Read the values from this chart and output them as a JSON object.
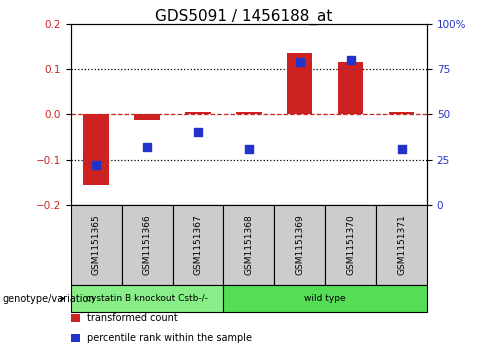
{
  "title": "GDS5091 / 1456188_at",
  "samples": [
    "GSM1151365",
    "GSM1151366",
    "GSM1151367",
    "GSM1151368",
    "GSM1151369",
    "GSM1151370",
    "GSM1151371"
  ],
  "bar_values": [
    -0.155,
    -0.012,
    0.005,
    0.005,
    0.135,
    0.115,
    0.005
  ],
  "dot_percentiles": [
    22,
    32,
    40,
    31,
    79,
    80,
    31
  ],
  "bar_color": "#cc2222",
  "dot_color": "#2233cc",
  "ylim_left": [
    -0.2,
    0.2
  ],
  "ylim_right": [
    0,
    100
  ],
  "yticks_left": [
    -0.2,
    -0.1,
    0.0,
    0.1,
    0.2
  ],
  "yticks_right": [
    0,
    25,
    50,
    75,
    100
  ],
  "ytick_labels_right": [
    "0",
    "25",
    "50",
    "75",
    "100%"
  ],
  "hline_color": "#cc2222",
  "group_sample_counts": [
    3,
    4
  ],
  "genotype_group_labels": [
    "cystatin B knockout Cstb-/-",
    "wild type"
  ],
  "genotype_group_colors": [
    "#88ee88",
    "#55dd55"
  ],
  "legend_items": [
    {
      "label": "transformed count",
      "color": "#cc2222"
    },
    {
      "label": "percentile rank within the sample",
      "color": "#2233cc"
    }
  ],
  "genotype_label": "genotype/variation",
  "bar_width": 0.5,
  "background_color": "#ffffff",
  "tick_label_color_left": "#cc2222",
  "tick_label_color_right": "#2233cc",
  "sample_box_color": "#cccccc",
  "title_fontsize": 11
}
